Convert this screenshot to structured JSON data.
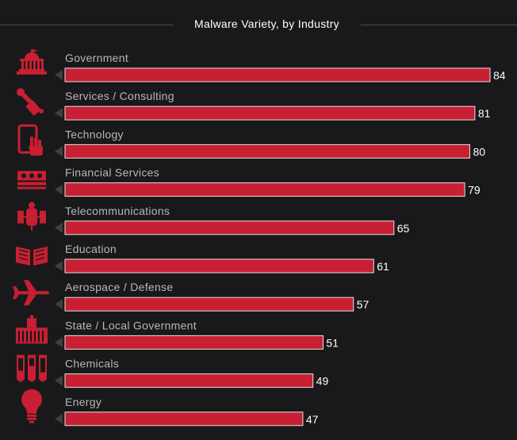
{
  "title": "Malware Variety, by Industry",
  "colors": {
    "background": "#19191b",
    "bar": "#c81f33",
    "icon": "#c81f33",
    "label": "#b7b7b9",
    "value": "#ffffff",
    "pointer": "#3f3f42"
  },
  "chart_data": {
    "type": "bar",
    "orientation": "horizontal",
    "title": "Malware Variety, by Industry",
    "xlabel": "",
    "ylabel": "",
    "categories": [
      "Government",
      "Services / Consulting",
      "Technology",
      "Financial Services",
      "Telecommunications",
      "Education",
      "Aerospace / Defense",
      "State / Local Government",
      "Chemicals",
      "Energy"
    ],
    "values": [
      84,
      81,
      80,
      79,
      65,
      61,
      57,
      51,
      49,
      47
    ],
    "icons": [
      "capitol-icon",
      "wrench-screwdriver-icon",
      "touchscreen-hand-icon",
      "cash-icon",
      "satellite-icon",
      "open-book-icon",
      "airplane-icon",
      "factory-icon",
      "test-tubes-icon",
      "lightbulb-icon"
    ],
    "grid": false,
    "legend": "none"
  }
}
